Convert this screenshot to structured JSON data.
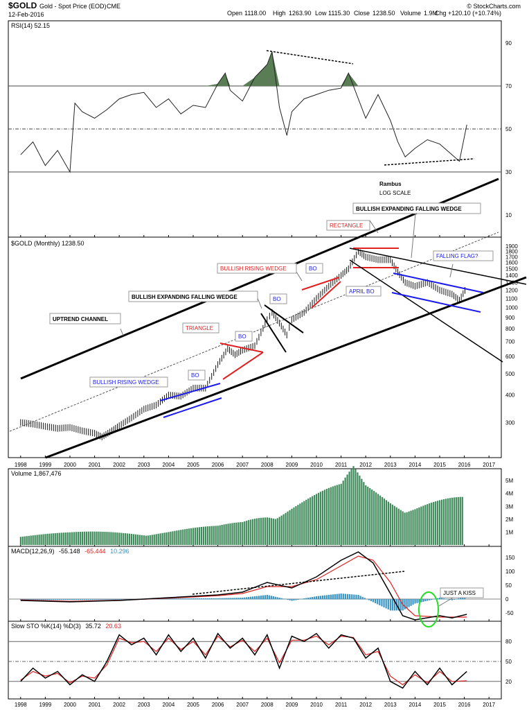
{
  "header": {
    "symbol": "$GOLD",
    "name": "Gold - Spot Price (EOD)",
    "exchange": "CME",
    "date": "12-Feb-2016",
    "open_label": "Open",
    "open": "1118.00",
    "high_label": "High",
    "high": "1263.90",
    "low_label": "Low",
    "low": "1115.30",
    "close_label": "Close",
    "close": "1238.50",
    "volume_label": "Volume",
    "volume": "1.9M",
    "chg_label": "Chg",
    "chg": "+120.10 (+10.74%)",
    "watermark": "© StockCharts.com"
  },
  "colors": {
    "price": "#111111",
    "rsi_fill": "#5a7d56",
    "volume": "#3f8a5a",
    "macd_hist": "#3a94c4",
    "signal": "#e02020",
    "annotation_red": "#e02020",
    "annotation_blue": "#1a1aee",
    "kiss_ellipse": "#22dd22"
  },
  "annotations": {
    "rambus": "Rambus",
    "log_scale": "LOG SCALE",
    "bullish_expanding_falling_wedge_top": "BULLISH EXPANDING FALLING WEDGE",
    "rectangle": "RECTANGLE",
    "bullish_rising_wedge_red": "BULLISH RISING WEDGE",
    "falling_flag": "FALLING FLAG?",
    "bullish_expanding_falling_wedge": "BULLISH EXPANDING FALLING WEDGE",
    "april_bo": "APRIL BO",
    "uptrend_channel": "UPTREND CHANNEL",
    "triangle": "TRIANGLE",
    "bullish_rising_wedge_blue": "BULLISH RISING WEDGE",
    "bo": "BO",
    "just_a_kiss": "JUST A KISS"
  },
  "chart_data": [
    {
      "type": "line",
      "panel": "RSI",
      "legend": "RSI(14) 52.15",
      "ylim": [
        20,
        100
      ],
      "yticks": [
        10,
        30,
        50,
        70,
        90
      ],
      "reference_lines": [
        30,
        50,
        70
      ],
      "x": [
        1998.0,
        1998.5,
        1999.0,
        1999.5,
        2000.0,
        2000.2,
        2000.5,
        2001.0,
        2001.5,
        2002.0,
        2002.5,
        2003.0,
        2003.5,
        2004.0,
        2004.5,
        2005.0,
        2005.5,
        2006.0,
        2006.3,
        2006.5,
        2007.0,
        2007.5,
        2008.0,
        2008.2,
        2008.5,
        2008.8,
        2009.0,
        2009.5,
        2010.0,
        2010.5,
        2011.0,
        2011.3,
        2011.7,
        2012.0,
        2012.5,
        2013.0,
        2013.3,
        2013.6,
        2014.0,
        2014.5,
        2015.0,
        2015.5,
        2015.8,
        2016.1
      ],
      "values": [
        38,
        44,
        33,
        40,
        30,
        62,
        58,
        55,
        59,
        64,
        66,
        67,
        60,
        64,
        57,
        61,
        60,
        71,
        76,
        68,
        63,
        74,
        80,
        86,
        60,
        47,
        58,
        64,
        66,
        68,
        69,
        76,
        64,
        55,
        66,
        54,
        44,
        37,
        41,
        45,
        43,
        38,
        35,
        52
      ],
      "notes": "Shaded areas where RSI > 70; dashed trendline across highs 2008–2011, dashed trendline across lows 2013–2016"
    },
    {
      "type": "line",
      "panel": "Price",
      "legend": "$GOLD (Monthly) 1238.50",
      "scale": "log",
      "ylim": [
        240,
        2000
      ],
      "yticks": [
        300,
        400,
        500,
        600,
        700,
        800,
        900,
        1000,
        1100,
        1200,
        1300,
        1400,
        1500,
        1600,
        1700,
        1800,
        1900
      ],
      "x": [
        1998.0,
        1998.5,
        1999.0,
        1999.5,
        2000.0,
        2000.5,
        2001.0,
        2001.3,
        2001.7,
        2002.0,
        2002.5,
        2003.0,
        2003.5,
        2004.0,
        2004.5,
        2005.0,
        2005.5,
        2006.0,
        2006.4,
        2006.7,
        2007.0,
        2007.5,
        2008.0,
        2008.2,
        2008.5,
        2008.8,
        2009.0,
        2009.5,
        2010.0,
        2010.5,
        2011.0,
        2011.3,
        2011.7,
        2012.0,
        2012.5,
        2013.0,
        2013.3,
        2013.6,
        2014.0,
        2014.5,
        2015.0,
        2015.5,
        2015.8,
        2016.1
      ],
      "values": [
        300,
        295,
        288,
        282,
        285,
        275,
        268,
        258,
        275,
        290,
        315,
        345,
        360,
        400,
        395,
        430,
        430,
        550,
        650,
        610,
        640,
        670,
        880,
        950,
        850,
        750,
        880,
        950,
        1100,
        1250,
        1400,
        1500,
        1800,
        1700,
        1650,
        1650,
        1450,
        1300,
        1250,
        1300,
        1200,
        1150,
        1080,
        1238
      ],
      "ma_x": [
        1998.0,
        2001.0,
        2003.0,
        2005.0,
        2007.0,
        2009.0,
        2011.0,
        2013.0,
        2015.0,
        2017.0
      ],
      "ma_values": [
        310,
        300,
        340,
        420,
        560,
        780,
        1050,
        1300,
        1450,
        1600
      ]
    },
    {
      "type": "bar",
      "panel": "Volume",
      "legend": "Volume 1,867,476",
      "yticks_labels": [
        "1M",
        "2M",
        "3M",
        "4M",
        "5M"
      ],
      "yticks": [
        1,
        2,
        3,
        4,
        5
      ],
      "x": [
        1998.0,
        2000.0,
        2002.0,
        2004.0,
        2006.0,
        2007.0,
        2008.0,
        2009.0,
        2010.0,
        2011.0,
        2011.5,
        2012.0,
        2013.0,
        2014.0,
        2015.0,
        2016.0
      ],
      "values": [
        0.8,
        0.8,
        0.9,
        1.0,
        1.2,
        1.6,
        2.5,
        3.0,
        3.4,
        3.8,
        5.0,
        4.0,
        3.5,
        3.2,
        3.1,
        3.0
      ]
    },
    {
      "type": "line",
      "panel": "MACD",
      "legend_name": "MACD(12,26,9)",
      "legend_macd": "-55.148",
      "legend_signal": "-65.444",
      "legend_hist": "10.296",
      "ylim": [
        -100,
        175
      ],
      "yticks": [
        -50,
        0,
        50,
        100,
        150
      ],
      "x": [
        1998.0,
        2000.0,
        2002.0,
        2004.0,
        2006.0,
        2007.0,
        2008.0,
        2009.0,
        2010.0,
        2011.0,
        2011.7,
        2012.3,
        2013.0,
        2013.5,
        2014.0,
        2015.0,
        2015.5,
        2016.1
      ],
      "macd": [
        -5,
        -10,
        -5,
        5,
        15,
        25,
        60,
        40,
        80,
        140,
        170,
        130,
        20,
        -60,
        -75,
        -60,
        -68,
        -55
      ],
      "signal": [
        -3,
        -8,
        -4,
        3,
        12,
        20,
        45,
        45,
        70,
        120,
        155,
        140,
        60,
        -20,
        -60,
        -65,
        -65,
        -65
      ],
      "notes": "Dashed trendline across MACD lows 2006–2013; green ellipse marks 'just a kiss' 2014.6"
    },
    {
      "type": "line",
      "panel": "Slow STO",
      "legend_name": "Slow STO %K(14) %D(3)",
      "legend_k": "35.72",
      "legend_d": "20.63",
      "ylim": [
        0,
        100
      ],
      "yticks": [
        20,
        50,
        80
      ],
      "x": [
        1998.0,
        1998.5,
        1999.0,
        1999.5,
        2000.0,
        2000.5,
        2001.0,
        2001.5,
        2002.0,
        2002.5,
        2003.0,
        2003.5,
        2004.0,
        2004.5,
        2005.0,
        2005.5,
        2006.0,
        2006.5,
        2007.0,
        2007.5,
        2008.0,
        2008.5,
        2009.0,
        2009.5,
        2010.0,
        2010.5,
        2011.0,
        2011.5,
        2012.0,
        2012.5,
        2013.0,
        2013.5,
        2014.0,
        2014.5,
        2015.0,
        2015.5,
        2016.1
      ],
      "k": [
        20,
        40,
        25,
        35,
        15,
        30,
        20,
        50,
        90,
        75,
        85,
        60,
        90,
        65,
        85,
        55,
        92,
        70,
        85,
        60,
        90,
        40,
        88,
        80,
        92,
        70,
        90,
        85,
        55,
        70,
        20,
        10,
        35,
        15,
        40,
        15,
        35
      ],
      "d": [
        22,
        35,
        28,
        32,
        18,
        28,
        25,
        45,
        85,
        78,
        80,
        65,
        85,
        68,
        80,
        60,
        88,
        72,
        82,
        65,
        85,
        48,
        82,
        82,
        88,
        75,
        88,
        86,
        60,
        65,
        28,
        15,
        30,
        18,
        35,
        20,
        21
      ]
    }
  ],
  "x_axis": {
    "years": [
      "1998",
      "1999",
      "2000",
      "2001",
      "2002",
      "2003",
      "2004",
      "2005",
      "2006",
      "2007",
      "2008",
      "2009",
      "2010",
      "2011",
      "2012",
      "2013",
      "2014",
      "2015",
      "2016",
      "2017"
    ]
  }
}
